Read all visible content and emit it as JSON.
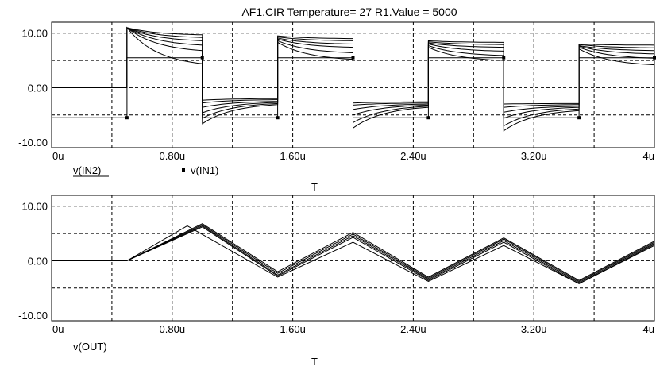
{
  "title": "AF1.CIR Temperature= 27 R1.Value = 5000",
  "x_tick_labels": [
    "0u",
    "0.80u",
    "1.60u",
    "2.40u",
    "3.20u",
    "4u"
  ],
  "colors": {
    "background": "#ffffff",
    "lines": "#000000",
    "grid": "#000000"
  },
  "chart_data": [
    {
      "type": "line",
      "title": "AF1.CIR Temperature= 27 R1.Value = 5000",
      "xlabel": "T",
      "x_unit": "us",
      "xlim": [
        0,
        4
      ],
      "ylim": [
        -11,
        12
      ],
      "yticks": [
        -10,
        0,
        10
      ],
      "y_tick_labels": [
        "-10.00",
        "0.00",
        "10.00"
      ],
      "grid": true,
      "grid_style": "dashed",
      "legend": [
        {
          "label": "v(IN2)",
          "style": "underlined"
        },
        {
          "label": "v(IN1)",
          "style": "square-marker"
        }
      ],
      "in1": {
        "name": "v(IN1)",
        "x": [
          0,
          0.5,
          0.5,
          1.0,
          1.0,
          1.5,
          1.5,
          2.0,
          2.0,
          2.5,
          2.5,
          3.0,
          3.0,
          3.5,
          3.5,
          4.0
        ],
        "y": [
          -5.5,
          -5.5,
          5.5,
          5.5,
          -5.5,
          -5.5,
          5.5,
          5.5,
          -5.5,
          -5.5,
          5.5,
          5.5,
          -5.5,
          -5.5,
          5.5,
          5.5
        ],
        "markers_x": [
          0.5,
          1.0,
          1.5,
          2.0,
          2.5,
          3.0,
          3.5,
          4.0
        ]
      },
      "in2_family": {
        "name": "v(IN2)",
        "step_times": [
          0.5,
          1.0,
          1.5,
          2.0,
          2.5,
          3.0,
          3.5
        ],
        "initial_value": 0,
        "curves": [
          {
            "high_start": [
              11.0,
              9.5,
              8.6,
              8.0
            ],
            "high_end": [
              9.7,
              9.0,
              8.3,
              7.8
            ],
            "low_start": [
              -2.3,
              -2.8,
              -3.0
            ],
            "low_end": [
              -2.0,
              -2.6,
              -2.9
            ]
          },
          {
            "high_start": [
              11.0,
              9.3,
              8.4,
              7.9
            ],
            "high_end": [
              9.2,
              8.6,
              7.9,
              7.3
            ],
            "low_start": [
              -2.8,
              -3.2,
              -3.6
            ],
            "low_end": [
              -2.2,
              -2.8,
              -3.1
            ]
          },
          {
            "high_start": [
              11.0,
              9.1,
              8.2,
              7.7
            ],
            "high_end": [
              8.6,
              8.0,
              7.4,
              6.8
            ],
            "low_start": [
              -3.6,
              -4.0,
              -4.5
            ],
            "low_end": [
              -2.5,
              -3.0,
              -3.4
            ]
          },
          {
            "high_start": [
              11.0,
              8.9,
              8.0,
              7.6
            ],
            "high_end": [
              7.8,
              7.4,
              6.7,
              6.2
            ],
            "low_start": [
              -4.6,
              -5.0,
              -5.6
            ],
            "low_end": [
              -2.7,
              -3.2,
              -3.6
            ]
          },
          {
            "high_start": [
              11.0,
              8.6,
              7.7,
              7.4
            ],
            "high_end": [
              6.8,
              6.4,
              5.9,
              5.4
            ],
            "low_start": [
              -5.6,
              -6.4,
              -7.0
            ],
            "low_end": [
              -2.9,
              -3.4,
              -3.9
            ]
          },
          {
            "high_start": [
              11.0,
              8.3,
              7.4,
              7.1
            ],
            "high_end": [
              4.4,
              5.2,
              5.0,
              4.2
            ],
            "low_start": [
              -6.6,
              -7.4,
              -7.9
            ],
            "low_end": [
              -3.1,
              -3.6,
              -4.2
            ]
          }
        ]
      }
    },
    {
      "type": "line",
      "xlabel": "T",
      "x_unit": "us",
      "xlim": [
        0,
        4
      ],
      "ylim": [
        -11,
        12
      ],
      "yticks": [
        -10,
        0,
        10
      ],
      "y_tick_labels": [
        "-10.00",
        "0.00",
        "10.00"
      ],
      "grid": true,
      "grid_style": "dashed",
      "legend": [
        {
          "label": "v(OUT)",
          "style": "plain"
        }
      ],
      "out_family": {
        "name": "v(OUT)",
        "x": [
          0,
          0.5,
          1.0,
          1.5,
          2.0,
          2.5,
          3.0,
          3.5,
          4.0
        ],
        "curves": [
          [
            0,
            0,
            6.8,
            -2.0,
            5.2,
            -3.0,
            4.2,
            -3.6,
            3.6
          ],
          [
            0,
            0,
            6.6,
            -2.3,
            4.9,
            -3.2,
            4.0,
            -3.8,
            3.4
          ],
          [
            0,
            0,
            6.4,
            -2.6,
            4.6,
            -3.4,
            3.7,
            -4.0,
            3.2
          ],
          [
            0,
            0,
            6.2,
            -2.8,
            4.3,
            -3.6,
            3.4,
            -4.2,
            3.0
          ],
          [
            0,
            0,
            5.0,
            -3.0,
            3.4,
            -3.8,
            2.8,
            -4.2,
            2.8
          ]
        ],
        "early_peak_curve": {
          "x": [
            0.9
          ],
          "y": [
            6.4
          ]
        }
      }
    }
  ]
}
